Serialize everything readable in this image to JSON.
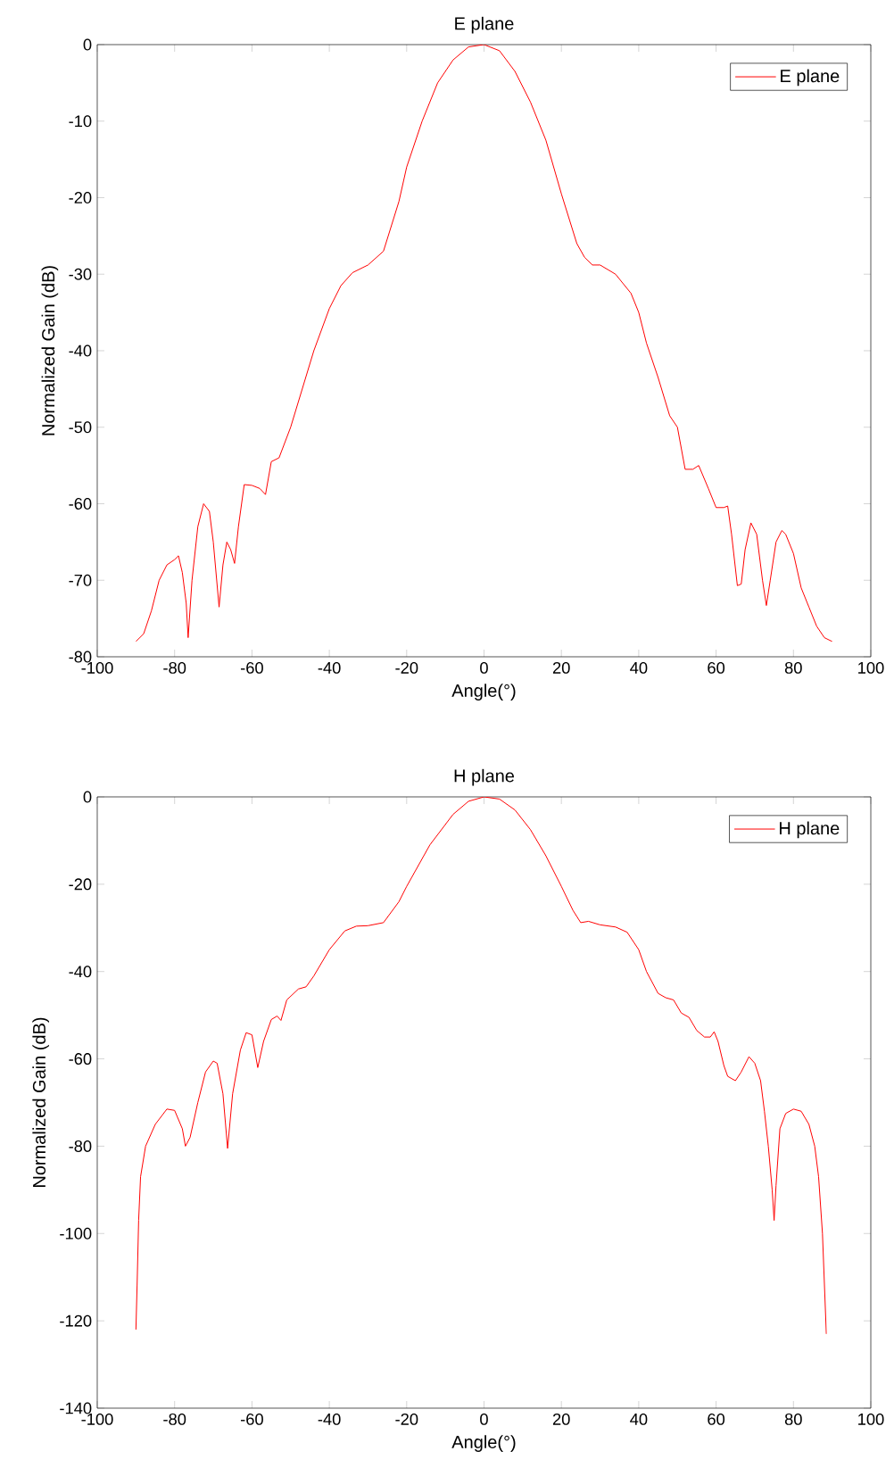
{
  "chart_data": [
    {
      "type": "line",
      "title": "E plane",
      "xlabel": "Angle(°)",
      "ylabel": "Normalized Gain (dB)",
      "xlim": [
        -100,
        100
      ],
      "ylim": [
        -80,
        0
      ],
      "xticks": [
        -100,
        -80,
        -60,
        -40,
        -20,
        0,
        20,
        40,
        60,
        80,
        100
      ],
      "yticks": [
        -80,
        -70,
        -60,
        -50,
        -40,
        -30,
        -20,
        -10,
        0
      ],
      "legend": "top right",
      "grid": false,
      "series": [
        {
          "name": "E plane",
          "color": "#ff0000",
          "x": [
            -90,
            -88,
            -86,
            -84,
            -82,
            -80,
            -79,
            -78,
            -77,
            -76.5,
            -75.5,
            -74,
            -72.5,
            -71,
            -70,
            -68.5,
            -67.5,
            -66.5,
            -65.5,
            -64.5,
            -63.5,
            -62,
            -60,
            -58,
            -56.5,
            -55,
            -53,
            -50,
            -47,
            -44,
            -40,
            -37,
            -34,
            -30,
            -26,
            -22,
            -20,
            -16,
            -12,
            -8,
            -4,
            0,
            4,
            8,
            12,
            16,
            20,
            24,
            26,
            28,
            30,
            34,
            38,
            40,
            42,
            45,
            48,
            50,
            52,
            54,
            55.5,
            58,
            60,
            62,
            63,
            64,
            65.5,
            66.5,
            67.5,
            69,
            70.5,
            72,
            73,
            74,
            75.5,
            77,
            78,
            80,
            82,
            84,
            86,
            88,
            90
          ],
          "values": [
            -78,
            -77,
            -74,
            -70,
            -68,
            -67.3,
            -66.8,
            -69,
            -73,
            -77.5,
            -70,
            -63,
            -60,
            -61,
            -65,
            -73.5,
            -68,
            -65,
            -66,
            -67.8,
            -63,
            -57.5,
            -57.6,
            -58,
            -58.8,
            -54.5,
            -54,
            -50,
            -45,
            -40,
            -34.5,
            -31.5,
            -29.8,
            -28.8,
            -27,
            -20.5,
            -16,
            -10,
            -5,
            -2,
            -0.3,
            0,
            -0.8,
            -3.5,
            -7.5,
            -12.5,
            -19.5,
            -26,
            -27.8,
            -28.8,
            -28.8,
            -30,
            -32.5,
            -35,
            -39,
            -43.5,
            -48.5,
            -50,
            -55.5,
            -55.5,
            -55,
            -58,
            -60.5,
            -60.5,
            -60.3,
            -64,
            -70.7,
            -70.5,
            -66,
            -62.5,
            -64,
            -70,
            -73.3,
            -70,
            -65,
            -63.5,
            -64,
            -66.5,
            -71,
            -73.5,
            -76,
            -77.5,
            -78
          ]
        }
      ]
    },
    {
      "type": "line",
      "title": "H plane",
      "xlabel": "Angle(°)",
      "ylabel": "Normalized Gain (dB)",
      "xlim": [
        -100,
        100
      ],
      "ylim": [
        -140,
        0
      ],
      "xticks": [
        -100,
        -80,
        -60,
        -40,
        -20,
        0,
        20,
        40,
        60,
        80,
        100
      ],
      "yticks": [
        -140,
        -120,
        -100,
        -80,
        -60,
        -40,
        -20,
        0
      ],
      "legend": "top right",
      "grid": false,
      "series": [
        {
          "name": "H plane",
          "color": "#ff0000",
          "x": [
            -90,
            -89.7,
            -89.3,
            -88.8,
            -87.5,
            -85,
            -82,
            -80,
            -78,
            -77.2,
            -76,
            -74,
            -72,
            -70,
            -69,
            -67.5,
            -66.3,
            -65,
            -63,
            -61.5,
            -60,
            -58.5,
            -57,
            -55,
            -53.5,
            -52.5,
            -51,
            -48,
            -46,
            -44,
            -40,
            -36,
            -33,
            -30,
            -26,
            -22,
            -20,
            -14,
            -8,
            -4,
            0,
            4,
            8,
            12,
            16,
            20,
            23,
            25,
            27,
            30,
            34,
            37,
            40,
            42,
            45,
            47,
            49,
            51,
            53,
            55,
            57,
            58.5,
            59.5,
            60.5,
            62,
            63,
            65,
            66.5,
            68.5,
            70,
            71.5,
            72.5,
            73.5,
            74.5,
            75,
            75.5,
            76.5,
            78,
            80,
            82,
            84,
            85.5,
            86.5,
            87.5,
            88.5
          ],
          "values": [
            -122,
            -112,
            -97,
            -87,
            -80,
            -75,
            -71.5,
            -71.8,
            -76,
            -80,
            -78,
            -70,
            -63,
            -60.5,
            -61,
            -68,
            -80.5,
            -68,
            -58,
            -54,
            -54.5,
            -62,
            -56,
            -51,
            -50.2,
            -51.2,
            -46.5,
            -44,
            -43.5,
            -41,
            -35,
            -30.7,
            -29.6,
            -29.5,
            -28.8,
            -24,
            -20.5,
            -11,
            -4,
            -1,
            0,
            -0.5,
            -3,
            -7.5,
            -13.5,
            -20.5,
            -26,
            -28.8,
            -28.5,
            -29.3,
            -29.8,
            -31,
            -35,
            -40,
            -45,
            -46,
            -46.5,
            -49.5,
            -50.5,
            -53.5,
            -55,
            -55,
            -53.8,
            -56,
            -61.5,
            -64,
            -65,
            -63,
            -59.5,
            -61,
            -65,
            -72,
            -80,
            -90,
            -97,
            -89,
            -76,
            -72.5,
            -71.5,
            -72,
            -75,
            -80,
            -87,
            -100,
            -123
          ]
        }
      ]
    }
  ]
}
